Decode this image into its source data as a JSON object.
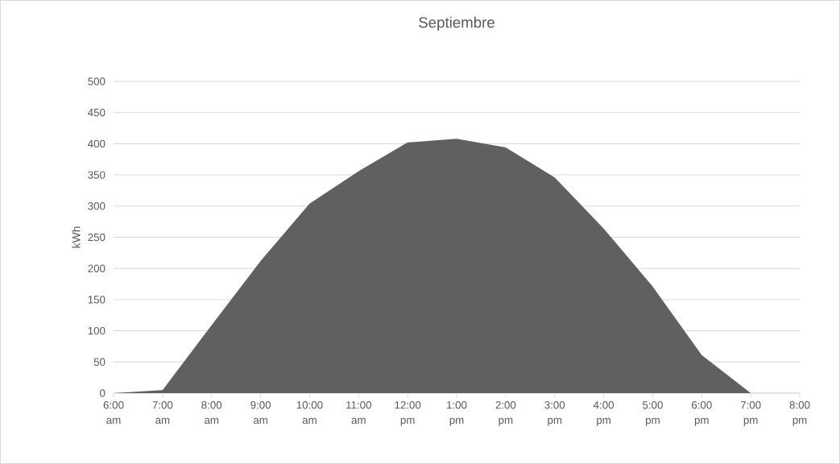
{
  "chart_data": {
    "type": "area",
    "title": "Septiembre",
    "ylabel": "kWh",
    "categories": [
      "6:00 am",
      "7:00 am",
      "8:00 am",
      "9:00 am",
      "10:00 am",
      "11:00 am",
      "12:00 pm",
      "1:00 pm",
      "2:00 pm",
      "3:00 pm",
      "4:00 pm",
      "5:00 pm",
      "6:00 pm",
      "7:00 pm",
      "8:00 pm"
    ],
    "values": [
      0,
      5,
      109,
      212,
      304,
      356,
      402,
      408,
      394,
      346,
      264,
      171,
      61,
      0,
      null
    ],
    "color": "#606060",
    "ylim": [
      0,
      500
    ],
    "yticks": [
      0,
      50,
      100,
      150,
      200,
      250,
      300,
      350,
      400,
      450,
      500
    ],
    "grid": "y"
  }
}
